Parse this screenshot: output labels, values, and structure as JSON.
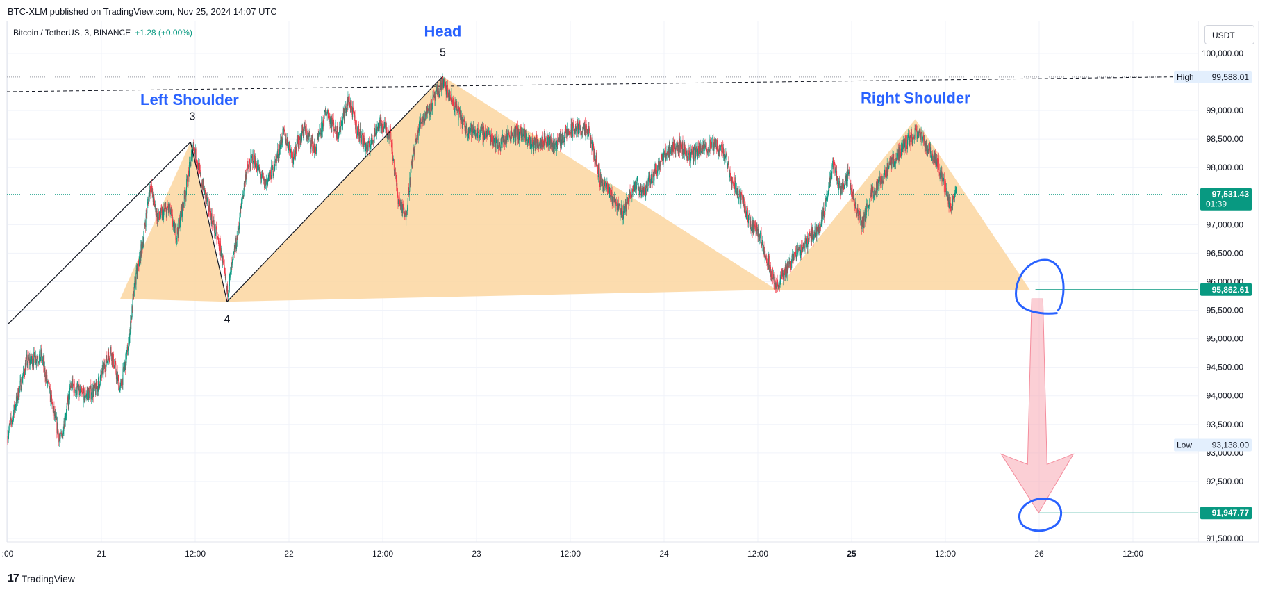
{
  "header": {
    "published": "BTC-XLM published on TradingView.com, Nov 25, 2024 14:07 UTC",
    "symbol": "Bitcoin / TetherUS, 3, BINANCE",
    "change": "+1.28 (+0.00%)",
    "currency": "USDT"
  },
  "footer": {
    "logo": "17",
    "brand": "TradingView"
  },
  "colors": {
    "up": "#089981",
    "down": "#f23645",
    "pattern": "#fbd6a0",
    "annotation": "#2962ff",
    "target_arrow": "#f7a8b2",
    "price_tag": "#089981"
  },
  "chart_data": {
    "type": "candlestick",
    "y_axis": {
      "min": 91500,
      "max": 100000,
      "ticks": [
        "100,000.00",
        "99,000.00",
        "98,500.00",
        "98,000.00",
        "97,000.00",
        "96,500.00",
        "96,000.00",
        "95,500.00",
        "95,000.00",
        "94,500.00",
        "94,000.00",
        "93,500.00",
        "93,000.00",
        "92,500.00",
        "91,500.00"
      ],
      "tick_values": [
        100000,
        99000,
        98500,
        98000,
        97000,
        96500,
        96000,
        95500,
        95000,
        94500,
        94000,
        93500,
        93000,
        92500,
        91500
      ]
    },
    "x_axis": {
      "range": [
        0,
        5.75
      ],
      "labels": [
        {
          "t": 0.0,
          "text": ":00"
        },
        {
          "t": 0.5,
          "text": "21"
        },
        {
          "t": 1.0,
          "text": "12:00"
        },
        {
          "t": 1.5,
          "text": "22"
        },
        {
          "t": 2.0,
          "text": "12:00"
        },
        {
          "t": 2.5,
          "text": "23"
        },
        {
          "t": 3.0,
          "text": "12:00"
        },
        {
          "t": 3.5,
          "text": "24"
        },
        {
          "t": 4.0,
          "text": "12:00"
        },
        {
          "t": 4.5,
          "text": "25",
          "bold": true
        },
        {
          "t": 5.0,
          "text": "12:00"
        },
        {
          "t": 5.5,
          "text": "26"
        },
        {
          "t": 6.0,
          "text": "12:00"
        }
      ]
    },
    "price_path": [
      [
        0.0,
        93300
      ],
      [
        0.1,
        94600
      ],
      [
        0.18,
        94700
      ],
      [
        0.28,
        93200
      ],
      [
        0.34,
        94200
      ],
      [
        0.4,
        94000
      ],
      [
        0.47,
        94100
      ],
      [
        0.55,
        94800
      ],
      [
        0.6,
        94100
      ],
      [
        0.64,
        94800
      ],
      [
        0.68,
        96000
      ],
      [
        0.72,
        96700
      ],
      [
        0.76,
        97700
      ],
      [
        0.8,
        97100
      ],
      [
        0.86,
        97300
      ],
      [
        0.9,
        96800
      ],
      [
        0.95,
        97600
      ],
      [
        0.99,
        98400
      ],
      [
        1.03,
        97800
      ],
      [
        1.08,
        97200
      ],
      [
        1.14,
        96500
      ],
      [
        1.17,
        95800
      ],
      [
        1.22,
        96700
      ],
      [
        1.27,
        97900
      ],
      [
        1.31,
        98200
      ],
      [
        1.37,
        97700
      ],
      [
        1.42,
        98000
      ],
      [
        1.47,
        98600
      ],
      [
        1.52,
        98200
      ],
      [
        1.58,
        98700
      ],
      [
        1.64,
        98300
      ],
      [
        1.7,
        99000
      ],
      [
        1.76,
        98600
      ],
      [
        1.82,
        99200
      ],
      [
        1.86,
        98700
      ],
      [
        1.92,
        98300
      ],
      [
        1.98,
        98800
      ],
      [
        2.04,
        98600
      ],
      [
        2.08,
        97500
      ],
      [
        2.12,
        97100
      ],
      [
        2.16,
        98200
      ],
      [
        2.2,
        98800
      ],
      [
        2.26,
        99100
      ],
      [
        2.32,
        99500
      ],
      [
        2.38,
        99100
      ],
      [
        2.44,
        98700
      ],
      [
        2.5,
        98600
      ],
      [
        2.56,
        98600
      ],
      [
        2.62,
        98400
      ],
      [
        2.68,
        98600
      ],
      [
        2.74,
        98600
      ],
      [
        2.8,
        98400
      ],
      [
        2.86,
        98500
      ],
      [
        2.92,
        98400
      ],
      [
        2.98,
        98600
      ],
      [
        3.04,
        98700
      ],
      [
        3.1,
        98600
      ],
      [
        3.16,
        97800
      ],
      [
        3.22,
        97500
      ],
      [
        3.28,
        97200
      ],
      [
        3.34,
        97700
      ],
      [
        3.4,
        97600
      ],
      [
        3.46,
        98000
      ],
      [
        3.52,
        98300
      ],
      [
        3.58,
        98400
      ],
      [
        3.64,
        98200
      ],
      [
        3.7,
        98300
      ],
      [
        3.76,
        98400
      ],
      [
        3.82,
        98300
      ],
      [
        3.86,
        97800
      ],
      [
        3.92,
        97400
      ],
      [
        3.96,
        97000
      ],
      [
        4.0,
        96900
      ],
      [
        4.05,
        96400
      ],
      [
        4.1,
        95900
      ],
      [
        4.15,
        96200
      ],
      [
        4.2,
        96500
      ],
      [
        4.24,
        96600
      ],
      [
        4.28,
        96800
      ],
      [
        4.32,
        96900
      ],
      [
        4.36,
        97300
      ],
      [
        4.4,
        98100
      ],
      [
        4.44,
        97600
      ],
      [
        4.48,
        97900
      ],
      [
        4.52,
        97300
      ],
      [
        4.56,
        97000
      ],
      [
        4.6,
        97500
      ],
      [
        4.66,
        97800
      ],
      [
        4.72,
        98100
      ],
      [
        4.78,
        98400
      ],
      [
        4.84,
        98600
      ],
      [
        4.88,
        98500
      ],
      [
        4.92,
        98300
      ],
      [
        4.96,
        98100
      ],
      [
        5.0,
        97600
      ],
      [
        5.03,
        97300
      ],
      [
        5.06,
        97600
      ]
    ],
    "price_lines": [
      {
        "label": "High",
        "value": 99588.01,
        "text": "99,588.01"
      },
      {
        "label": "Low",
        "value": 93138.0,
        "text": "93,138.00"
      }
    ],
    "current_price": {
      "value": 97531.43,
      "text": "97,531.43",
      "countdown": "01:39"
    },
    "neckline": {
      "value": 95862.61,
      "text": "95,862.61"
    },
    "target": {
      "value": 91947.77,
      "text": "91,947.77"
    },
    "pattern_points": [
      {
        "id": "3",
        "t": 0.975,
        "price": 98450
      },
      {
        "id": "4",
        "t": 1.17,
        "price": 95650
      },
      {
        "id": "5",
        "t": 2.32,
        "price": 99600
      }
    ],
    "annotations": {
      "left_shoulder": {
        "text": "Left Shoulder",
        "t": 0.97,
        "price": 99100
      },
      "head": {
        "text": "Head",
        "t": 2.32,
        "price": 100300
      },
      "right_shoulder": {
        "text": "Right Shoulder",
        "t": 4.84,
        "price": 99130
      }
    },
    "pattern_label_points": [
      {
        "text": "3",
        "t": 0.985,
        "price": 98840
      },
      {
        "text": "4",
        "t": 1.17,
        "price": 95280
      },
      {
        "text": "5",
        "t": 2.32,
        "price": 99960
      }
    ]
  }
}
